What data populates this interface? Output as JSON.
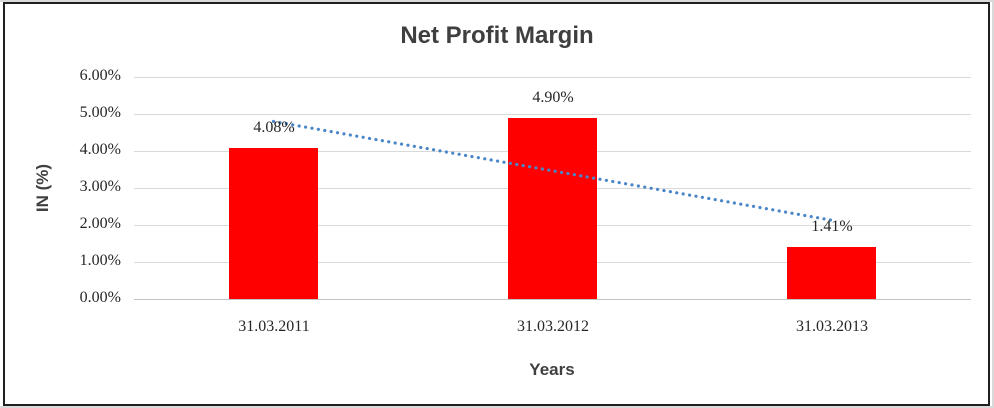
{
  "chart_data": {
    "type": "bar",
    "title": "Net Profit Margin",
    "xlabel": "Years",
    "ylabel": "IN (%)",
    "categories": [
      "31.03.2011",
      "31.03.2012",
      "31.03.2013"
    ],
    "values": [
      4.08,
      4.9,
      1.41
    ],
    "data_labels": [
      "4.08%",
      "4.90%",
      "1.41%"
    ],
    "ylim": [
      0,
      6
    ],
    "ytick_step": 1,
    "ytick_labels": [
      "0.00%",
      "1.00%",
      "2.00%",
      "3.00%",
      "4.00%",
      "5.00%",
      "6.00%"
    ],
    "grid": true,
    "legend": "none",
    "bar_color": "#ff0000",
    "gridline_color": "#d9d9d9",
    "axis_line_color": "#c3c3c3",
    "trendline": {
      "type": "linear",
      "style": "dotted",
      "color": "#4a86c8",
      "start_value": 4.8,
      "end_value": 2.13
    }
  }
}
